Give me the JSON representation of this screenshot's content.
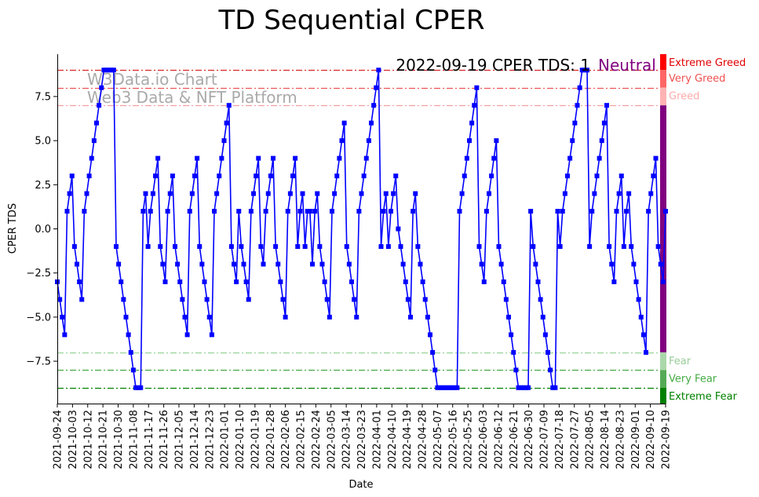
{
  "chart_data": {
    "type": "line",
    "title": "TD Sequential CPER",
    "xlabel": "Date",
    "ylabel": "CPER TDS",
    "ylim": [
      -9.9,
      9.9
    ],
    "yticks": [
      "−7.5",
      "−5.0",
      "−2.5",
      "0.0",
      "2.5",
      "5.0",
      "7.5"
    ],
    "ytick_values": [
      -7.5,
      -5.0,
      -2.5,
      0.0,
      2.5,
      5.0,
      7.5
    ],
    "xticks": [
      "2021-09-24",
      "2021-10-03",
      "2021-10-12",
      "2021-10-21",
      "2021-10-30",
      "2021-11-08",
      "2021-11-17",
      "2021-11-26",
      "2021-12-05",
      "2021-12-14",
      "2021-12-23",
      "2022-01-01",
      "2022-01-10",
      "2022-01-19",
      "2022-01-28",
      "2022-02-06",
      "2022-02-15",
      "2022-02-24",
      "2022-03-05",
      "2022-03-14",
      "2022-03-23",
      "2022-04-01",
      "2022-04-10",
      "2022-04-19",
      "2022-04-28",
      "2022-05-07",
      "2022-05-16",
      "2022-05-25",
      "2022-06-03",
      "2022-06-12",
      "2022-06-21",
      "2022-06-30",
      "2022-07-09",
      "2022-07-18",
      "2022-07-27",
      "2022-08-05",
      "2022-08-14",
      "2022-08-23",
      "2022-09-01",
      "2022-09-10",
      "2022-09-19"
    ],
    "annotation": "2022-09-19 CPER TDS: 1",
    "sentiment": "Neutral",
    "watermark": [
      "W3Data.io Chart",
      "Web3 Data & NFT Platform"
    ],
    "reference_lines": [
      {
        "value": 9,
        "color": "#d62728",
        "label": "Extreme Greed"
      },
      {
        "value": 8,
        "color": "#ee5555",
        "label": "Very Greed"
      },
      {
        "value": 7,
        "color": "#f5a0a0",
        "label": "Greed"
      },
      {
        "value": -7,
        "color": "#98d198",
        "label": "Fear"
      },
      {
        "value": -8,
        "color": "#44aa44",
        "label": "Very Fear"
      },
      {
        "value": -9,
        "color": "#008000",
        "label": "Extreme Fear"
      }
    ],
    "zones": [
      {
        "from": 9,
        "to": 9.9,
        "color": "#ff0000",
        "label": "Extreme Greed",
        "label_color": "#e00000"
      },
      {
        "from": 8,
        "to": 9,
        "color": "#ff6666",
        "label": "Very Greed",
        "label_color": "#f05050"
      },
      {
        "from": 7,
        "to": 8,
        "color": "#ffb3b3",
        "label": "Greed",
        "label_color": "#ffaaaa"
      },
      {
        "from": -7,
        "to": 7,
        "color": "#800080",
        "label": "",
        "label_color": "#800080"
      },
      {
        "from": -8,
        "to": -7,
        "color": "#aad8aa",
        "label": "Fear",
        "label_color": "#99cc99"
      },
      {
        "from": -9,
        "to": -8,
        "color": "#55aa55",
        "label": "Very Fear",
        "label_color": "#44aa44"
      },
      {
        "from": -9.9,
        "to": -9,
        "color": "#008000",
        "label": "Extreme Fear",
        "label_color": "#008000"
      }
    ],
    "series": [
      {
        "name": "CPER TDS",
        "color": "#0000ff",
        "start_date": "2021-09-24",
        "end_date": "2022-09-19",
        "values": [
          -3,
          -4,
          -5,
          -6,
          1,
          2,
          3,
          -1,
          -2,
          -3,
          -4,
          1,
          2,
          3,
          4,
          5,
          6,
          7,
          8,
          9,
          9,
          9,
          9,
          9,
          -1,
          -2,
          -3,
          -4,
          -5,
          -6,
          -7,
          -8,
          -9,
          -9,
          -9,
          1,
          2,
          -1,
          1,
          2,
          3,
          4,
          -1,
          -2,
          -3,
          1,
          2,
          3,
          -1,
          -2,
          -3,
          -4,
          -5,
          -6,
          1,
          2,
          3,
          4,
          -1,
          -2,
          -3,
          -4,
          -5,
          -6,
          1,
          2,
          3,
          4,
          5,
          6,
          7,
          -1,
          -2,
          -3,
          1,
          -1,
          -2,
          -3,
          -4,
          1,
          2,
          3,
          4,
          -1,
          -2,
          1,
          2,
          3,
          4,
          -1,
          -2,
          -3,
          -4,
          -5,
          1,
          2,
          3,
          4,
          -1,
          1,
          2,
          -1,
          1,
          1,
          -2,
          1,
          2,
          -1,
          -2,
          -3,
          -4,
          -5,
          1,
          2,
          3,
          4,
          5,
          6,
          -1,
          -2,
          -3,
          -4,
          -5,
          1,
          2,
          3,
          4,
          5,
          6,
          7,
          8,
          9,
          -1,
          1,
          2,
          -1,
          1,
          2,
          3,
          0,
          -1,
          -2,
          -3,
          -4,
          -5,
          1,
          2,
          -1,
          -2,
          -3,
          -4,
          -5,
          -6,
          -7,
          -8,
          -9,
          -9,
          -9,
          -9,
          -9,
          -9,
          -9,
          -9,
          -9,
          1,
          2,
          3,
          4,
          5,
          6,
          7,
          8,
          -1,
          -2,
          -3,
          1,
          2,
          3,
          4,
          5,
          -1,
          -2,
          -3,
          -4,
          -5,
          -6,
          -7,
          -8,
          -9,
          -9,
          -9,
          -9,
          -9,
          1,
          -1,
          -2,
          -3,
          -4,
          -5,
          -6,
          -7,
          -8,
          -9,
          -9,
          1,
          -1,
          1,
          2,
          3,
          4,
          5,
          6,
          7,
          8,
          9,
          9,
          9,
          -1,
          1,
          2,
          3,
          4,
          5,
          6,
          7,
          -1,
          -2,
          -3,
          1,
          2,
          3,
          -1,
          1,
          2,
          -1,
          -2,
          -3,
          -4,
          -5,
          -6,
          -7,
          1,
          2,
          3,
          4,
          -1,
          -2,
          -3,
          1
        ]
      }
    ]
  }
}
